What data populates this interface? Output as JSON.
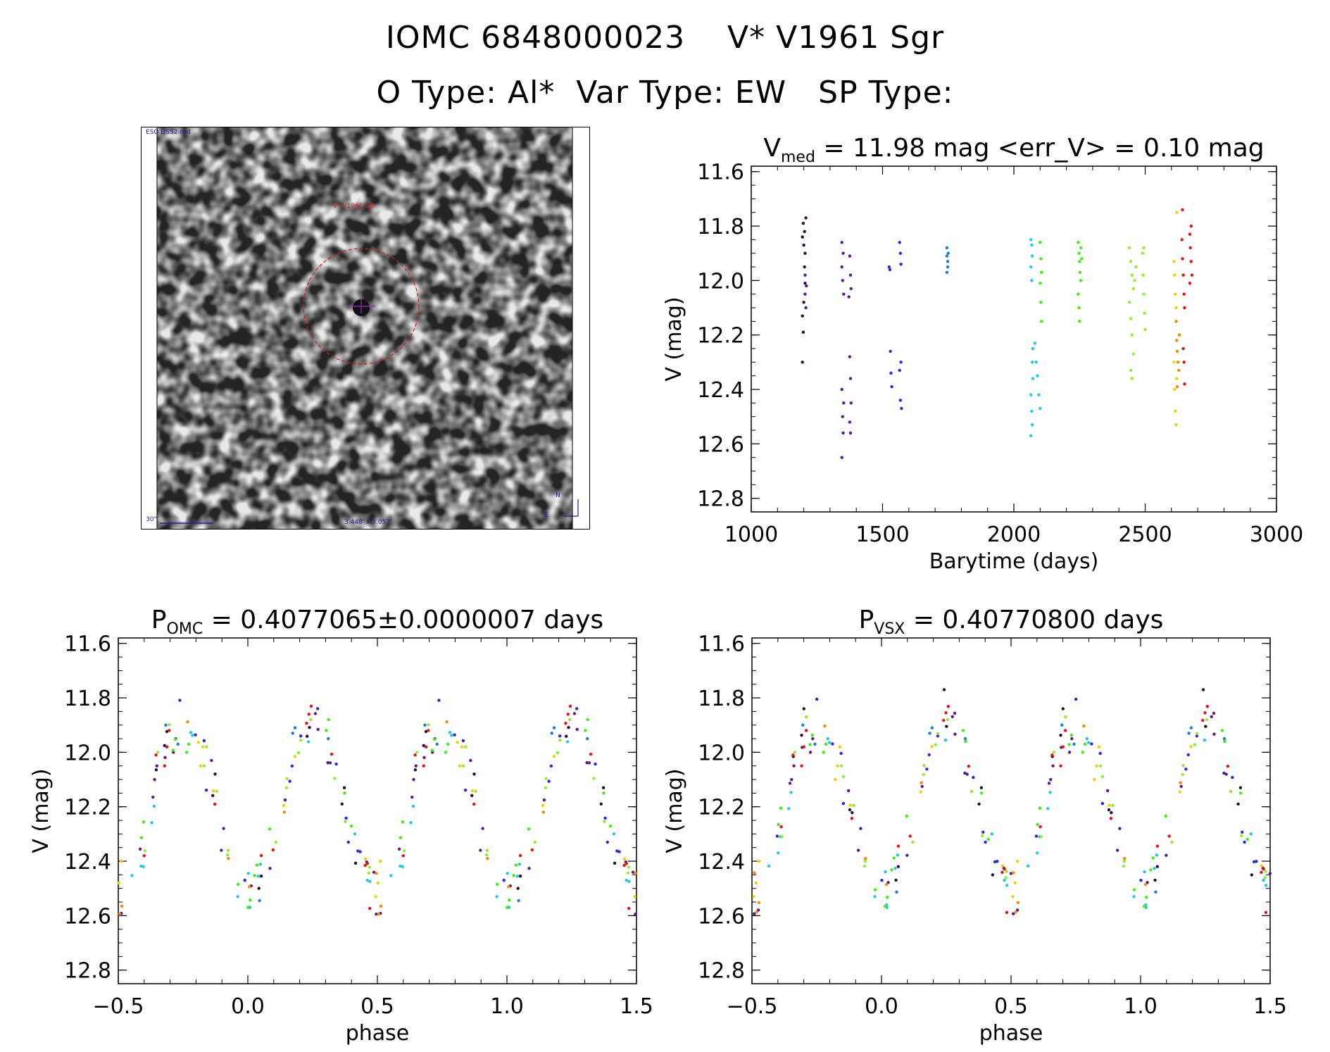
{
  "header": {
    "line1": "IOMC 6848000023    V* V1961 Sgr",
    "line2": "O Type: Al*  Var Type: EW   SP Type:"
  },
  "finder": {
    "top_left_label": "ESO DSS2-red",
    "target_label": "V* V1961 Sgr",
    "scale_label": "30\"",
    "fov_label": "3.448' x 3.057'",
    "compass_n": "N",
    "compass_e": "E"
  },
  "colors": {
    "epochs": [
      "#2a0a3a",
      "#5a1a8a",
      "#2a2ad8",
      "#1a7ae0",
      "#20c8e8",
      "#40ee10",
      "#90ee30",
      "#f0d000",
      "#f08a00",
      "#e81010"
    ],
    "circle": "#d81818",
    "cross": "#9a2ad0"
  },
  "chart_data": [
    {
      "type": "scatter",
      "title_var": "V",
      "title_sub": "med",
      "title_rest": "= 11.98 mag <err_V> = 0.10 mag",
      "xlabel": "Barytime (days)",
      "ylabel": "V (mag)",
      "xlim": [
        1000,
        3000
      ],
      "ylim": [
        12.85,
        11.58
      ],
      "xticks": [
        "1000",
        "1500",
        "2000",
        "2500",
        "3000"
      ],
      "yticks": [
        "11.6",
        "11.8",
        "12.0",
        "12.2",
        "12.4",
        "12.6",
        "12.8"
      ],
      "series": [
        {
          "color_index": 0,
          "points": [
            [
              1195,
              11.84
            ],
            [
              1198,
              11.79
            ],
            [
              1200,
              11.87
            ],
            [
              1203,
              11.82
            ],
            [
              1205,
              11.9
            ],
            [
              1195,
              12.13
            ],
            [
              1198,
              12.19
            ],
            [
              1195,
              12.3
            ],
            [
              1200,
              12.08
            ],
            [
              1203,
              11.95
            ],
            [
              1205,
              12.01
            ],
            [
              1208,
              11.77
            ]
          ]
        },
        {
          "color_index": 1,
          "points": [
            [
              1205,
              11.98
            ],
            [
              1205,
              12.05
            ],
            [
              1208,
              12.1
            ],
            [
              1210,
              12.02
            ],
            [
              1345,
              11.86
            ],
            [
              1345,
              11.95
            ],
            [
              1348,
              12.0
            ],
            [
              1350,
              11.9
            ],
            [
              1352,
              12.05
            ],
            [
              1345,
              12.4
            ],
            [
              1348,
              12.5
            ],
            [
              1350,
              12.56
            ],
            [
              1345,
              12.65
            ],
            [
              1352,
              12.45
            ],
            [
              1375,
              11.91
            ],
            [
              1378,
              11.98
            ],
            [
              1380,
              12.03
            ],
            [
              1375,
              12.28
            ],
            [
              1378,
              12.36
            ],
            [
              1380,
              12.45
            ],
            [
              1375,
              12.52
            ],
            [
              1378,
              12.56
            ],
            [
              1372,
              12.06
            ]
          ]
        },
        {
          "color_index": 2,
          "points": [
            [
              1525,
              11.95
            ],
            [
              1528,
              11.96
            ],
            [
              1530,
              12.26
            ],
            [
              1532,
              12.34
            ],
            [
              1535,
              12.39
            ],
            [
              1565,
              11.86
            ],
            [
              1568,
              11.9
            ],
            [
              1570,
              11.94
            ],
            [
              1570,
              12.3
            ],
            [
              1565,
              12.33
            ],
            [
              1568,
              12.44
            ],
            [
              1572,
              12.47
            ]
          ]
        },
        {
          "color_index": 3,
          "points": [
            [
              1745,
              11.88
            ],
            [
              1745,
              11.91
            ],
            [
              1748,
              11.93
            ],
            [
              1748,
              11.95
            ],
            [
              1750,
              11.9
            ],
            [
              1745,
              11.97
            ]
          ]
        },
        {
          "color_index": 4,
          "points": [
            [
              2065,
              11.85
            ],
            [
              2068,
              11.87
            ],
            [
              2070,
              11.91
            ],
            [
              2065,
              11.95
            ],
            [
              2068,
              12.0
            ],
            [
              2070,
              12.3
            ],
            [
              2072,
              12.36
            ],
            [
              2065,
              12.42
            ],
            [
              2068,
              12.48
            ],
            [
              2070,
              12.53
            ],
            [
              2065,
              12.57
            ],
            [
              2072,
              12.25
            ],
            [
              2080,
              12.23
            ],
            [
              2085,
              12.3
            ],
            [
              2090,
              12.35
            ],
            [
              2095,
              12.42
            ],
            [
              2100,
              12.47
            ]
          ]
        },
        {
          "color_index": 5,
          "points": [
            [
              2100,
              11.86
            ],
            [
              2103,
              11.92
            ],
            [
              2105,
              11.97
            ],
            [
              2100,
              12.01
            ],
            [
              2103,
              12.08
            ],
            [
              2105,
              12.15
            ],
            [
              2245,
              11.86
            ],
            [
              2248,
              11.9
            ],
            [
              2250,
              11.93
            ],
            [
              2252,
              11.97
            ],
            [
              2255,
              12.0
            ],
            [
              2245,
              12.05
            ],
            [
              2248,
              12.1
            ],
            [
              2250,
              12.15
            ],
            [
              2255,
              11.88
            ],
            [
              2258,
              11.92
            ]
          ]
        },
        {
          "color_index": 6,
          "points": [
            [
              2440,
              11.88
            ],
            [
              2445,
              11.93
            ],
            [
              2450,
              11.98
            ],
            [
              2455,
              12.03
            ],
            [
              2440,
              12.08
            ],
            [
              2445,
              12.14
            ],
            [
              2450,
              12.2
            ],
            [
              2455,
              12.27
            ],
            [
              2445,
              12.33
            ],
            [
              2450,
              12.36
            ],
            [
              2460,
              12.0
            ],
            [
              2465,
              11.95
            ],
            [
              2490,
              11.9
            ],
            [
              2492,
              11.98
            ],
            [
              2495,
              12.05
            ],
            [
              2497,
              12.12
            ],
            [
              2500,
              12.18
            ],
            [
              2495,
              11.88
            ]
          ]
        },
        {
          "color_index": 7,
          "points": [
            [
              2610,
              11.93
            ],
            [
              2612,
              11.98
            ],
            [
              2615,
              12.05
            ],
            [
              2618,
              12.1
            ],
            [
              2620,
              11.75
            ],
            [
              2610,
              12.3
            ],
            [
              2612,
              12.4
            ],
            [
              2615,
              12.48
            ],
            [
              2618,
              12.53
            ],
            [
              2620,
              12.36
            ]
          ]
        },
        {
          "color_index": 8,
          "points": [
            [
              2618,
              12.15
            ],
            [
              2620,
              12.22
            ],
            [
              2622,
              12.26
            ],
            [
              2625,
              12.3
            ],
            [
              2628,
              12.33
            ],
            [
              2622,
              12.39
            ],
            [
              2630,
              12.2
            ]
          ]
        },
        {
          "color_index": 9,
          "points": [
            [
              2640,
              11.85
            ],
            [
              2642,
              11.92
            ],
            [
              2645,
              11.98
            ],
            [
              2648,
              12.05
            ],
            [
              2650,
              12.1
            ],
            [
              2642,
              11.74
            ],
            [
              2645,
              12.25
            ],
            [
              2648,
              12.3
            ],
            [
              2650,
              12.38
            ],
            [
              2670,
              11.83
            ],
            [
              2672,
              11.88
            ],
            [
              2675,
              11.93
            ],
            [
              2678,
              11.98
            ],
            [
              2670,
              12.01
            ],
            [
              2675,
              11.8
            ]
          ]
        }
      ]
    },
    {
      "type": "scatter",
      "title_var": "P",
      "title_sub": "OMC",
      "title_rest": "= 0.4077065±0.0000007 days",
      "xlabel": "phase",
      "ylabel": "V (mag)",
      "xlim": [
        -0.5,
        1.5
      ],
      "ylim": [
        12.85,
        11.58
      ],
      "xticks": [
        "-0.5",
        "0.0",
        "0.5",
        "1.0",
        "1.5"
      ],
      "yticks": [
        "11.6",
        "11.8",
        "12.0",
        "12.2",
        "12.4",
        "12.6",
        "12.8"
      ]
    },
    {
      "type": "scatter",
      "title_var": "P",
      "title_sub": "VSX",
      "title_rest": "= 0.40770800 days",
      "xlabel": "phase",
      "ylabel": "V (mag)",
      "xlim": [
        -0.5,
        1.5
      ],
      "ylim": [
        12.85,
        11.58
      ],
      "xticks": [
        "-0.5",
        "0.0",
        "0.5",
        "1.0",
        "1.5"
      ],
      "yticks": [
        "11.6",
        "11.8",
        "12.0",
        "12.2",
        "12.4",
        "12.6",
        "12.8"
      ]
    }
  ]
}
